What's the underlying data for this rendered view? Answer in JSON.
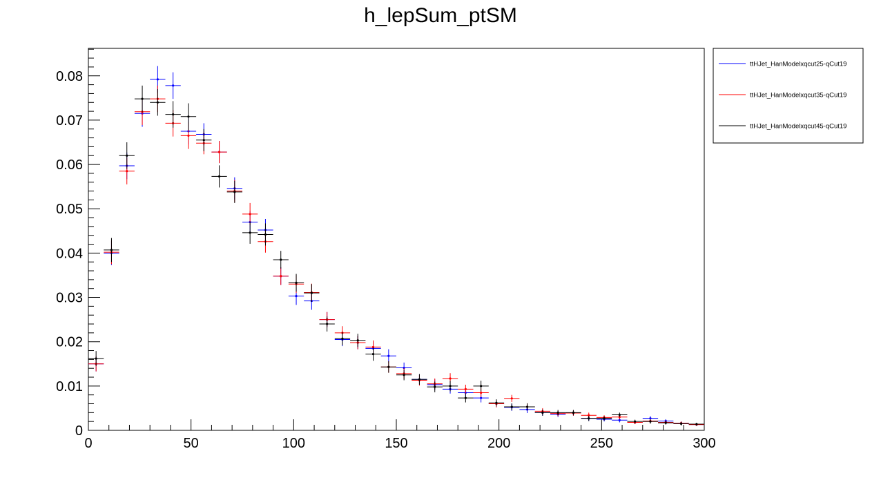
{
  "chart_data": {
    "type": "scatter",
    "title": "h_lepSum_ptSM",
    "xlabel": "",
    "ylabel": "",
    "xlim": [
      0,
      300
    ],
    "ylim": [
      0,
      0.0862
    ],
    "bin_width": 7.5,
    "x_ticks": [
      0,
      50,
      100,
      150,
      200,
      250,
      300
    ],
    "x_tick_labels": [
      "0",
      "50",
      "100",
      "150",
      "200",
      "250",
      "300"
    ],
    "y_ticks": [
      0,
      0.01,
      0.02,
      0.03,
      0.04,
      0.05,
      0.06,
      0.07,
      0.08
    ],
    "y_tick_labels": [
      "0",
      "0.01",
      "0.02",
      "0.03",
      "0.04",
      "0.05",
      "0.06",
      "0.07",
      "0.08"
    ],
    "legend_position": "top-right outside",
    "grid": false,
    "x": [
      3.75,
      11.25,
      18.75,
      26.25,
      33.75,
      41.25,
      48.75,
      56.25,
      63.75,
      71.25,
      78.75,
      86.25,
      93.75,
      101.25,
      108.75,
      116.25,
      123.75,
      131.25,
      138.75,
      146.25,
      153.75,
      161.25,
      168.75,
      176.25,
      183.75,
      191.25,
      198.75,
      206.25,
      213.75,
      221.25,
      228.75,
      236.25,
      243.75,
      251.25,
      258.75,
      266.25,
      273.75,
      281.25,
      288.75,
      296.25
    ],
    "series": [
      {
        "name": "ttHJet_HanModelxqcut25-qCut19",
        "color": "#0000ff",
        "values": [
          0.015,
          0.04,
          0.0597,
          0.0715,
          0.0792,
          0.0778,
          0.0675,
          0.0668,
          0.0628,
          0.0546,
          0.047,
          0.0452,
          0.0348,
          0.0303,
          0.0292,
          0.025,
          0.0205,
          0.0198,
          0.0185,
          0.0168,
          0.0141,
          0.0115,
          0.0103,
          0.0093,
          0.0085,
          0.0073,
          0.006,
          0.0052,
          0.0047,
          0.004,
          0.0036,
          0.0039,
          0.0027,
          0.0025,
          0.0023,
          0.0018,
          0.0027,
          0.0021,
          0.0016,
          0.0013
        ],
        "errors": [
          0.0017,
          0.0027,
          0.003,
          0.003,
          0.003,
          0.003,
          0.003,
          0.0025,
          0.0025,
          0.0025,
          0.0025,
          0.0025,
          0.002,
          0.002,
          0.002,
          0.0017,
          0.0015,
          0.0015,
          0.0015,
          0.0015,
          0.0012,
          0.0012,
          0.0012,
          0.001,
          0.001,
          0.001,
          0.0008,
          0.0008,
          0.0008,
          0.0007,
          0.0006,
          0.0006,
          0.0006,
          0.0005,
          0.0005,
          0.0004,
          0.0005,
          0.0004,
          0.0004,
          0.0003
        ]
      },
      {
        "name": "ttHJet_HanModelxqcut35-qCut19",
        "color": "#ff0000",
        "values": [
          0.015,
          0.0402,
          0.0585,
          0.0719,
          0.0748,
          0.0693,
          0.0665,
          0.0648,
          0.0628,
          0.054,
          0.0488,
          0.0426,
          0.0348,
          0.033,
          0.0311,
          0.025,
          0.022,
          0.0198,
          0.0188,
          0.0143,
          0.0128,
          0.0113,
          0.0105,
          0.0117,
          0.0093,
          0.0085,
          0.006,
          0.0072,
          0.0053,
          0.0043,
          0.0038,
          0.0039,
          0.0034,
          0.0029,
          0.003,
          0.0018,
          0.0021,
          0.0018,
          0.0016,
          0.0013
        ],
        "errors": [
          0.0017,
          0.0027,
          0.003,
          0.003,
          0.003,
          0.003,
          0.003,
          0.0025,
          0.0025,
          0.0025,
          0.0025,
          0.0025,
          0.002,
          0.002,
          0.002,
          0.0017,
          0.0015,
          0.0015,
          0.0015,
          0.0013,
          0.0012,
          0.0012,
          0.0012,
          0.0012,
          0.001,
          0.001,
          0.0008,
          0.0008,
          0.0008,
          0.0007,
          0.0006,
          0.0006,
          0.0006,
          0.0005,
          0.0005,
          0.0004,
          0.0005,
          0.0004,
          0.0004,
          0.0003
        ]
      },
      {
        "name": "ttHJet_HanModelxqcut45-qCut19",
        "color": "#000000",
        "values": [
          0.0162,
          0.0407,
          0.062,
          0.0748,
          0.074,
          0.0713,
          0.0708,
          0.0655,
          0.0573,
          0.0538,
          0.0446,
          0.0442,
          0.0385,
          0.0333,
          0.031,
          0.024,
          0.0207,
          0.0203,
          0.0172,
          0.0143,
          0.0125,
          0.0115,
          0.0098,
          0.01,
          0.0073,
          0.01,
          0.0062,
          0.0053,
          0.0053,
          0.004,
          0.004,
          0.004,
          0.0027,
          0.0027,
          0.0035,
          0.002,
          0.002,
          0.0017,
          0.0015,
          0.0014
        ],
        "errors": [
          0.0017,
          0.0027,
          0.003,
          0.003,
          0.003,
          0.003,
          0.003,
          0.0025,
          0.0025,
          0.0025,
          0.0025,
          0.0025,
          0.002,
          0.002,
          0.002,
          0.0017,
          0.0015,
          0.0015,
          0.0015,
          0.0013,
          0.0012,
          0.0012,
          0.0012,
          0.0012,
          0.001,
          0.0012,
          0.0008,
          0.0008,
          0.0008,
          0.0007,
          0.0006,
          0.0006,
          0.0006,
          0.0005,
          0.0005,
          0.0004,
          0.0005,
          0.0004,
          0.0004,
          0.0003
        ]
      }
    ]
  }
}
